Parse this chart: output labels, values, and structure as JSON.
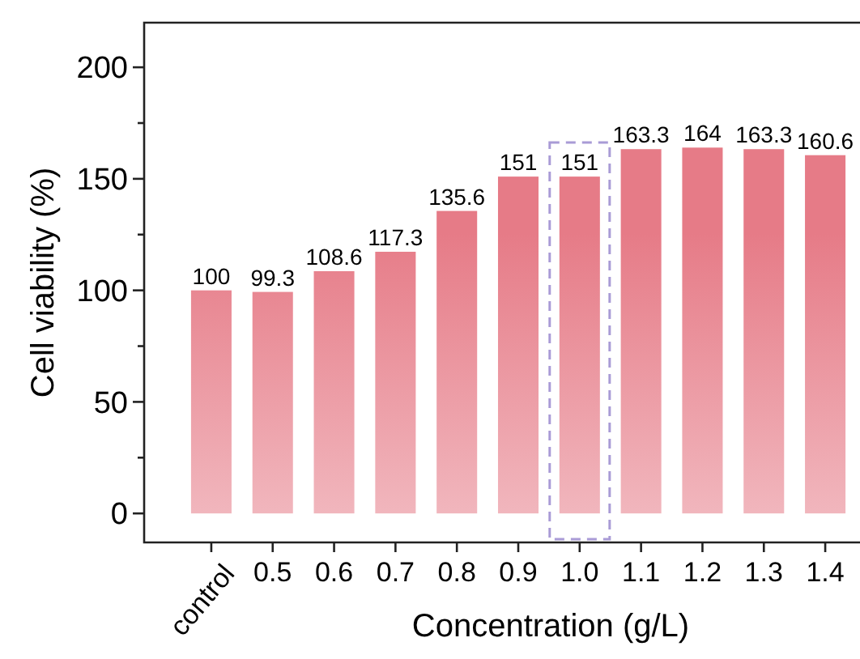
{
  "chart_data": {
    "type": "bar",
    "xlabel": "Concentration (g/L)",
    "ylabel": "Cell viability (%)",
    "categories": [
      "control",
      "0.5",
      "0.6",
      "0.7",
      "0.8",
      "0.9",
      "1.0",
      "1.1",
      "1.2",
      "1.3",
      "1.4"
    ],
    "values": [
      100,
      99.3,
      108.6,
      117.3,
      135.6,
      151,
      151,
      163.3,
      164,
      163.3,
      160.6
    ],
    "color": "#e67b87",
    "ylim": [
      -13,
      220
    ],
    "yticks": [
      0,
      {
        "value": 25,
        "label": null
      },
      50,
      {
        "value": 75,
        "label": null
      },
      100,
      {
        "value": 125,
        "label": null
      },
      150,
      {
        "value": 175,
        "label": null
      },
      200
    ],
    "data_labels": true,
    "grid": false
  }
}
